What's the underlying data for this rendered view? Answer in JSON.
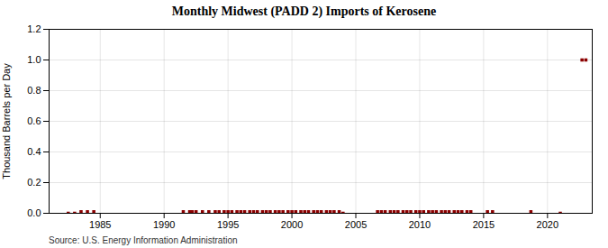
{
  "chart_data": {
    "type": "scatter",
    "title": "Monthly Midwest (PADD 2) Imports of Kerosene",
    "ylabel": "Thousand Barrels per Day",
    "source": "Source: U.S. Energy Information Administration",
    "color": "#8b0000",
    "marker": "square",
    "grid": true,
    "xlim": [
      1981.0,
      2023.5
    ],
    "xticks": [
      1985,
      1990,
      1995,
      2000,
      2005,
      2010,
      2015,
      2020
    ],
    "ylim": [
      0,
      1.2
    ],
    "yticks": [
      {
        "value": 0,
        "label": "0.0"
      },
      0.2,
      0.4,
      0.6,
      0.8,
      {
        "value": 1,
        "label": "1.0"
      },
      1.2
    ],
    "x": [
      1982.5,
      1983.0,
      1983.5,
      1984.0,
      1984.5,
      1991.5,
      1992.0,
      1992.2,
      1992.5,
      1993.0,
      1993.5,
      1994.0,
      1994.3,
      1994.7,
      1995.0,
      1995.3,
      1995.7,
      1996.0,
      1996.3,
      1996.7,
      1997.0,
      1997.3,
      1997.7,
      1998.0,
      1998.3,
      1998.7,
      1999.0,
      1999.3,
      1999.7,
      2000.0,
      2000.3,
      2000.7,
      2001.0,
      2001.3,
      2001.7,
      2002.0,
      2002.3,
      2002.7,
      2003.0,
      2003.3,
      2003.7,
      2004.0,
      2006.7,
      2007.0,
      2007.3,
      2007.7,
      2008.0,
      2008.3,
      2008.7,
      2009.0,
      2009.3,
      2009.7,
      2010.0,
      2010.3,
      2010.7,
      2011.0,
      2011.3,
      2011.7,
      2012.0,
      2012.3,
      2012.7,
      2013.0,
      2013.3,
      2013.7,
      2014.0,
      2015.3,
      2015.7,
      2018.7,
      2021.0,
      2022.7,
      2023.0
    ],
    "values": [
      0.0,
      0.0,
      0.01,
      0.01,
      0.01,
      0.01,
      0.01,
      0.01,
      0.01,
      0.01,
      0.01,
      0.01,
      0.01,
      0.01,
      0.01,
      0.01,
      0.01,
      0.01,
      0.01,
      0.01,
      0.01,
      0.01,
      0.01,
      0.01,
      0.01,
      0.01,
      0.01,
      0.01,
      0.01,
      0.01,
      0.01,
      0.01,
      0.01,
      0.01,
      0.01,
      0.01,
      0.01,
      0.01,
      0.01,
      0.01,
      0.01,
      0.0,
      0.01,
      0.01,
      0.01,
      0.01,
      0.01,
      0.01,
      0.01,
      0.01,
      0.01,
      0.01,
      0.01,
      0.01,
      0.01,
      0.01,
      0.01,
      0.01,
      0.01,
      0.01,
      0.01,
      0.01,
      0.01,
      0.01,
      0.01,
      0.01,
      0.01,
      0.01,
      0.0,
      1.0,
      1.0
    ]
  }
}
